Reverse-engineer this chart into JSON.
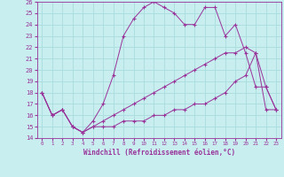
{
  "xlabel": "Windchill (Refroidissement éolien,°C)",
  "xlim": [
    -0.5,
    23.5
  ],
  "ylim": [
    14,
    26
  ],
  "xticks": [
    0,
    1,
    2,
    3,
    4,
    5,
    6,
    7,
    8,
    9,
    10,
    11,
    12,
    13,
    14,
    15,
    16,
    17,
    18,
    19,
    20,
    21,
    22,
    23
  ],
  "yticks": [
    14,
    15,
    16,
    17,
    18,
    19,
    20,
    21,
    22,
    23,
    24,
    25,
    26
  ],
  "background_color": "#c8eef0",
  "line_color": "#993399",
  "grid_color": "#aadddd",
  "line1_x": [
    0,
    1,
    2,
    3,
    4,
    5,
    6,
    7,
    8,
    9,
    10,
    11,
    12,
    13,
    14,
    15,
    16,
    17,
    18,
    19,
    20,
    21,
    22,
    23
  ],
  "line1_y": [
    18,
    16,
    16.5,
    15,
    14.5,
    15.5,
    17,
    19.5,
    23,
    24.5,
    25.5,
    26,
    25.5,
    25,
    24,
    24,
    25.5,
    25.5,
    23,
    24,
    21.5,
    18.5,
    18.5,
    16.5
  ],
  "line2_x": [
    0,
    1,
    2,
    3,
    4,
    5,
    6,
    7,
    8,
    9,
    10,
    11,
    12,
    13,
    14,
    15,
    16,
    17,
    18,
    19,
    20,
    21,
    22,
    23
  ],
  "line2_y": [
    18,
    16,
    16.5,
    15,
    14.5,
    15,
    15,
    15,
    15.5,
    15.5,
    15.5,
    16,
    16,
    16.5,
    16.5,
    17,
    17,
    17.5,
    18,
    19,
    19.5,
    21.5,
    16.5,
    16.5
  ],
  "line3_x": [
    0,
    1,
    2,
    3,
    4,
    5,
    6,
    7,
    8,
    9,
    10,
    11,
    12,
    13,
    14,
    15,
    16,
    17,
    18,
    19,
    20,
    21,
    22,
    23
  ],
  "line3_y": [
    18,
    16,
    16.5,
    15,
    14.5,
    15,
    15.5,
    16,
    16.5,
    17,
    17.5,
    18,
    18.5,
    19,
    19.5,
    20,
    20.5,
    21,
    21.5,
    21.5,
    22,
    21.5,
    18.5,
    16.5
  ]
}
